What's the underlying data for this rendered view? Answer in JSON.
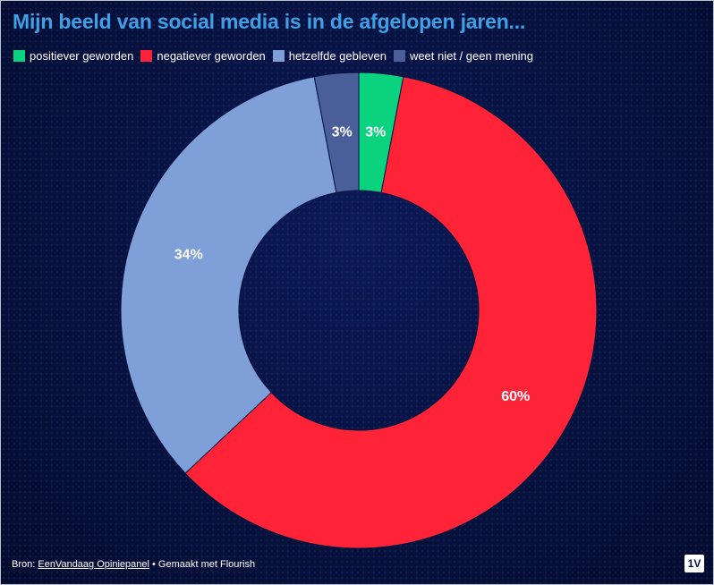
{
  "chart_data": {
    "type": "pie",
    "title": "Mijn beeld van social media is in de afgelopen jaren...",
    "categories": [
      "positiever geworden",
      "negatiever geworden",
      "hetzelfde gebleven",
      "weet niet / geen mening"
    ],
    "values": [
      3,
      60,
      34,
      3
    ],
    "data_labels": [
      "3%",
      "60%",
      "34%",
      "3%"
    ],
    "colors": [
      "#0ad27f",
      "#ff2337",
      "#7f9fd8",
      "#4a5e99"
    ],
    "legend_position": "top-left",
    "donut": true
  },
  "footer": {
    "prefix": "Bron: ",
    "source_link": "EenVandaag Opiniepanel",
    "suffix": " • Gemaakt met Flourish"
  },
  "logo": {
    "text": "1V"
  }
}
